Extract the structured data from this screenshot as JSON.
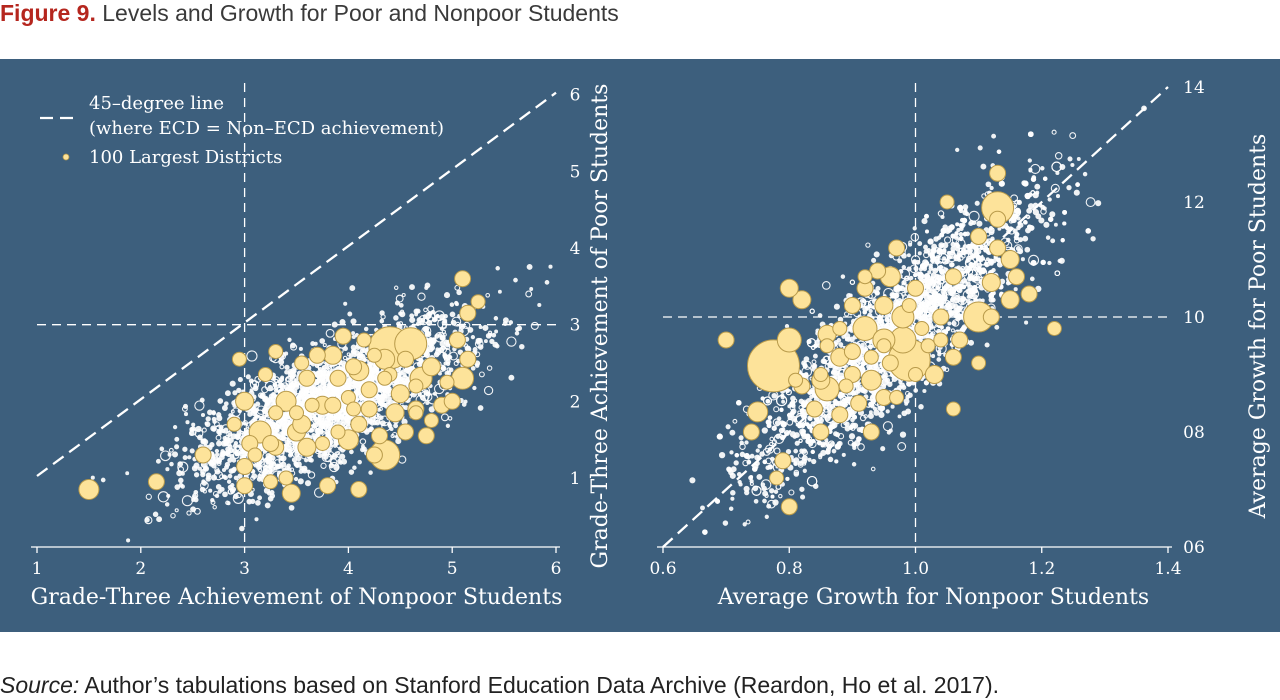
{
  "figure": {
    "label": "Figure 9.",
    "title": "Levels and Growth for Poor and Nonpoor Students"
  },
  "source": {
    "label": "Source:",
    "text": "Author’s tabulations based on Stanford Education Data Archive (Reardon, Ho et al. 2017)."
  },
  "colors": {
    "panel_background": "#3d5f7d",
    "district_ring": "#ffffff",
    "large_district_fill": "#fde39a",
    "large_district_stroke": "#b89a4a",
    "title_accent": "#b5261e"
  },
  "chart_data": [
    {
      "type": "scatter",
      "title": "",
      "xlabel": "Grade-Three Achievement of Nonpoor Students",
      "ylabel": "Grade-Three Achievement of Poor Students",
      "xlim": [
        1,
        6
      ],
      "ylim": [
        0.1,
        6.1
      ],
      "xticks": [
        "1",
        "2",
        "3",
        "4",
        "5",
        "6"
      ],
      "yticks": [
        "1",
        "2",
        "3",
        "4",
        "5",
        "6"
      ],
      "reference_lines": {
        "x": 3,
        "y": 3,
        "diagonal": "45-degree line"
      },
      "grid": false,
      "y_axis_side": "right",
      "legend": {
        "placement": "top-left",
        "entries": [
          {
            "marker": "dashed-line",
            "label": "45–degree line",
            "sublabel": "(where ECD = Non–ECD achievement)"
          },
          {
            "marker": "yellow-dot",
            "label": "100 Largest Districts"
          }
        ]
      },
      "series": [
        {
          "name": "100 Largest Districts",
          "points": [
            [
              4.4,
              2.7,
              21
            ],
            [
              4.6,
              2.75,
              16
            ],
            [
              3.4,
              2.0,
              10
            ],
            [
              4.35,
              1.3,
              15
            ],
            [
              4.7,
              2.3,
              11
            ],
            [
              5.1,
              2.3,
              11
            ],
            [
              3.5,
              1.6,
              9
            ],
            [
              3.85,
              2.6,
              9
            ],
            [
              4.1,
              2.4,
              10
            ],
            [
              4.35,
              2.55,
              10
            ],
            [
              4.0,
              1.5,
              10
            ],
            [
              3.15,
              1.6,
              11
            ],
            [
              3.75,
              1.95,
              9
            ],
            [
              4.5,
              2.1,
              9
            ],
            [
              4.8,
              2.45,
              9
            ],
            [
              5.15,
              2.55,
              8
            ],
            [
              5.05,
              2.8,
              8
            ],
            [
              5.15,
              3.15,
              8
            ],
            [
              5.1,
              3.6,
              8
            ],
            [
              5.25,
              3.3,
              7
            ],
            [
              4.45,
              1.85,
              9
            ],
            [
              3.0,
              2.0,
              9
            ],
            [
              3.3,
              1.4,
              8
            ],
            [
              3.6,
              1.4,
              9
            ],
            [
              4.1,
              1.7,
              8
            ],
            [
              3.85,
              1.95,
              8
            ],
            [
              4.2,
              1.9,
              8
            ],
            [
              4.55,
              1.6,
              8
            ],
            [
              4.75,
              1.55,
              8
            ],
            [
              4.9,
              1.95,
              8
            ],
            [
              4.65,
              1.9,
              8
            ],
            [
              4.2,
              2.15,
              8
            ],
            [
              3.95,
              2.85,
              8
            ],
            [
              4.05,
              2.45,
              8
            ],
            [
              3.6,
              2.3,
              8
            ],
            [
              3.25,
              1.45,
              8
            ],
            [
              3.55,
              1.7,
              9
            ],
            [
              3.9,
              1.6,
              7
            ],
            [
              4.25,
              1.3,
              8
            ],
            [
              4.3,
              1.55,
              8
            ],
            [
              3.7,
              2.6,
              8
            ],
            [
              3.9,
              2.3,
              8
            ],
            [
              3.0,
              1.15,
              8
            ],
            [
              3.0,
              0.9,
              8
            ],
            [
              2.15,
              0.95,
              8
            ],
            [
              1.5,
              0.85,
              10
            ],
            [
              3.45,
              0.8,
              9
            ],
            [
              2.95,
              2.55,
              7
            ],
            [
              3.05,
              1.45,
              8
            ],
            [
              2.6,
              1.3,
              8
            ],
            [
              2.9,
              1.7,
              7
            ],
            [
              3.8,
              0.9,
              8
            ],
            [
              4.1,
              0.85,
              8
            ],
            [
              3.4,
              1.0,
              7
            ],
            [
              5.0,
              2.0,
              8
            ],
            [
              4.65,
              2.2,
              7
            ],
            [
              4.4,
              2.35,
              7
            ],
            [
              4.25,
              2.6,
              7
            ],
            [
              4.0,
              2.05,
              7
            ],
            [
              3.3,
              1.85,
              7
            ],
            [
              3.5,
              1.85,
              7
            ],
            [
              3.3,
              2.65,
              7
            ],
            [
              3.2,
              2.35,
              7
            ],
            [
              3.65,
              1.95,
              7
            ],
            [
              4.15,
              2.8,
              7
            ],
            [
              4.55,
              2.55,
              8
            ],
            [
              4.35,
              2.3,
              7
            ],
            [
              4.05,
              1.9,
              7
            ],
            [
              3.75,
              1.45,
              7
            ],
            [
              4.8,
              1.75,
              7
            ],
            [
              4.95,
              2.25,
              7
            ],
            [
              4.65,
              1.85,
              7
            ],
            [
              3.55,
              2.5,
              7
            ],
            [
              3.1,
              1.3,
              7
            ],
            [
              3.25,
              0.95,
              7
            ]
          ]
        }
      ]
    },
    {
      "type": "scatter",
      "title": "",
      "xlabel": "Average Growth for Nonpoor Students",
      "ylabel": "Average Growth for Poor Students",
      "xlim": [
        0.6,
        1.4
      ],
      "ylim": [
        0.6,
        1.4
      ],
      "xticks": [
        "0.6",
        "0.8",
        "1.0",
        "1.2",
        "1.4"
      ],
      "yticks": [
        "06",
        "08",
        "10",
        "12",
        "14"
      ],
      "reference_lines": {
        "x": 1.0,
        "y": 1.0,
        "diagonal": "45-degree line"
      },
      "grid": false,
      "y_axis_side": "right",
      "series": [
        {
          "name": "100 Largest Districts",
          "points": [
            [
              0.775,
              0.915,
              26
            ],
            [
              0.99,
              0.925,
              21
            ],
            [
              1.13,
              1.19,
              16
            ],
            [
              1.1,
              1.0,
              15
            ],
            [
              0.86,
              0.875,
              12
            ],
            [
              0.98,
              0.96,
              13
            ],
            [
              0.92,
              0.98,
              12
            ],
            [
              0.93,
              0.89,
              10
            ],
            [
              0.95,
              0.96,
              11
            ],
            [
              0.98,
              1.0,
              11
            ],
            [
              0.96,
              1.07,
              10
            ],
            [
              0.8,
              0.96,
              12
            ],
            [
              0.75,
              0.835,
              10
            ],
            [
              0.82,
              1.03,
              9
            ],
            [
              0.8,
              1.05,
              9
            ],
            [
              0.7,
              0.96,
              8
            ],
            [
              1.15,
              1.03,
              9
            ],
            [
              1.12,
              1.06,
              9
            ],
            [
              1.15,
              1.1,
              9
            ],
            [
              1.1,
              1.14,
              8
            ],
            [
              1.13,
              1.12,
              8
            ],
            [
              1.06,
              1.07,
              8
            ],
            [
              1.04,
              1.0,
              8
            ],
            [
              1.03,
              0.9,
              9
            ],
            [
              1.0,
              1.05,
              8
            ],
            [
              0.97,
              1.12,
              8
            ],
            [
              0.95,
              1.02,
              9
            ],
            [
              0.88,
              0.93,
              9
            ],
            [
              0.85,
              0.89,
              9
            ],
            [
              0.9,
              0.9,
              8
            ],
            [
              0.86,
              0.97,
              9
            ],
            [
              0.92,
              1.05,
              8
            ],
            [
              0.94,
              1.08,
              8
            ],
            [
              0.9,
              1.02,
              8
            ],
            [
              0.88,
              0.83,
              8
            ],
            [
              0.85,
              0.8,
              8
            ],
            [
              0.82,
              0.88,
              8
            ],
            [
              0.91,
              0.85,
              8
            ],
            [
              0.93,
              0.8,
              8
            ],
            [
              0.84,
              0.84,
              8
            ],
            [
              0.96,
              0.92,
              8
            ],
            [
              0.9,
              0.94,
              8
            ],
            [
              1.06,
              0.93,
              8
            ],
            [
              0.74,
              0.8,
              8
            ],
            [
              0.79,
              0.75,
              8
            ],
            [
              0.8,
              0.67,
              8
            ],
            [
              0.78,
              0.72,
              7
            ],
            [
              0.95,
              0.86,
              8
            ],
            [
              1.07,
              0.96,
              8
            ],
            [
              1.13,
              1.17,
              8
            ],
            [
              1.13,
              1.25,
              8
            ],
            [
              1.05,
              1.2,
              7
            ],
            [
              1.16,
              1.07,
              8
            ],
            [
              1.12,
              1.0,
              8
            ],
            [
              1.18,
              1.04,
              8
            ],
            [
              0.92,
              1.07,
              7
            ],
            [
              0.86,
              0.95,
              7
            ],
            [
              0.88,
              0.98,
              7
            ],
            [
              0.95,
              0.95,
              7
            ],
            [
              0.97,
              0.86,
              7
            ],
            [
              1.0,
              0.9,
              7
            ],
            [
              1.02,
              0.95,
              7
            ],
            [
              1.04,
              0.96,
              7
            ],
            [
              1.06,
              0.84,
              7
            ],
            [
              1.1,
              0.92,
              7
            ],
            [
              1.22,
              0.98,
              7
            ],
            [
              0.85,
              0.9,
              7
            ],
            [
              0.89,
              0.88,
              7
            ],
            [
              0.93,
              0.93,
              7
            ],
            [
              0.99,
              1.02,
              7
            ],
            [
              1.01,
              0.98,
              7
            ],
            [
              0.81,
              0.89,
              7
            ]
          ]
        }
      ]
    }
  ]
}
